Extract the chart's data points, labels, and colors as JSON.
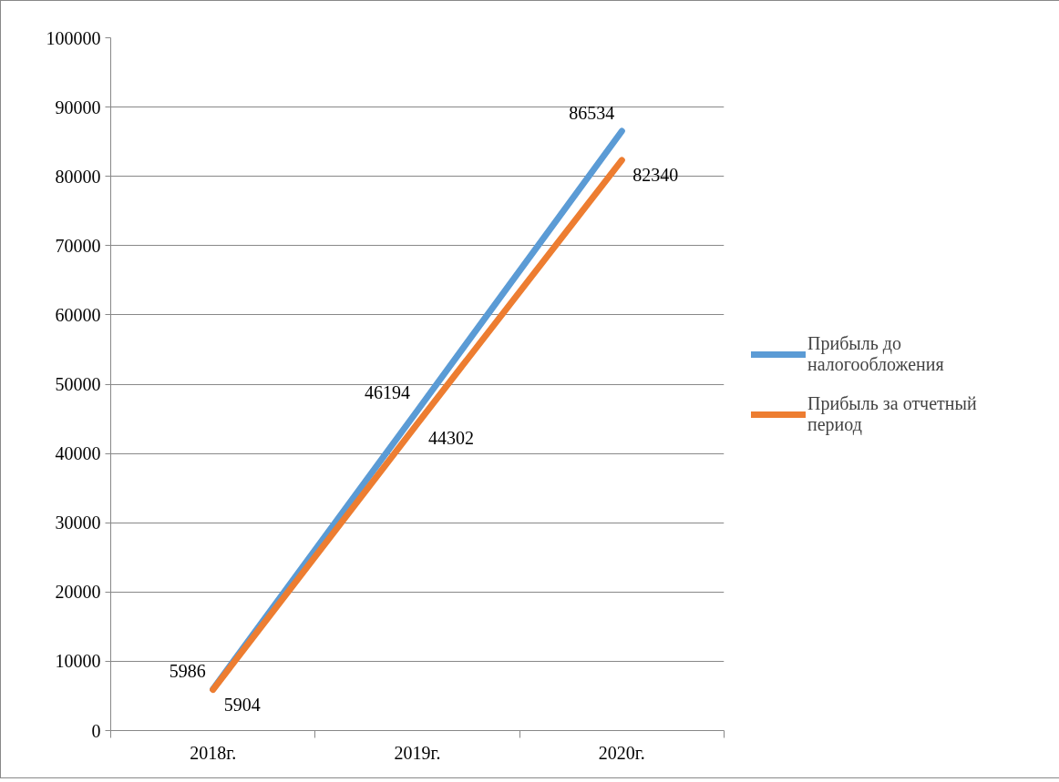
{
  "chart_data": {
    "type": "line",
    "categories": [
      "2018г.",
      "2019г.",
      "2020г."
    ],
    "series": [
      {
        "name": "Прибыль до налогообложения",
        "color": "#5b9bd5",
        "values": [
          5986,
          46194,
          86534
        ]
      },
      {
        "name": "Прибыль за отчетный период",
        "color": "#ed7d31",
        "values": [
          5904,
          44302,
          82340
        ]
      }
    ],
    "ylim": [
      0,
      100000
    ],
    "yticks": [
      0,
      10000,
      20000,
      30000,
      40000,
      50000,
      60000,
      70000,
      80000,
      90000,
      100000
    ],
    "grid": "y",
    "legend": "right",
    "data_labels": true,
    "marker": "none",
    "line_style": "solid"
  }
}
